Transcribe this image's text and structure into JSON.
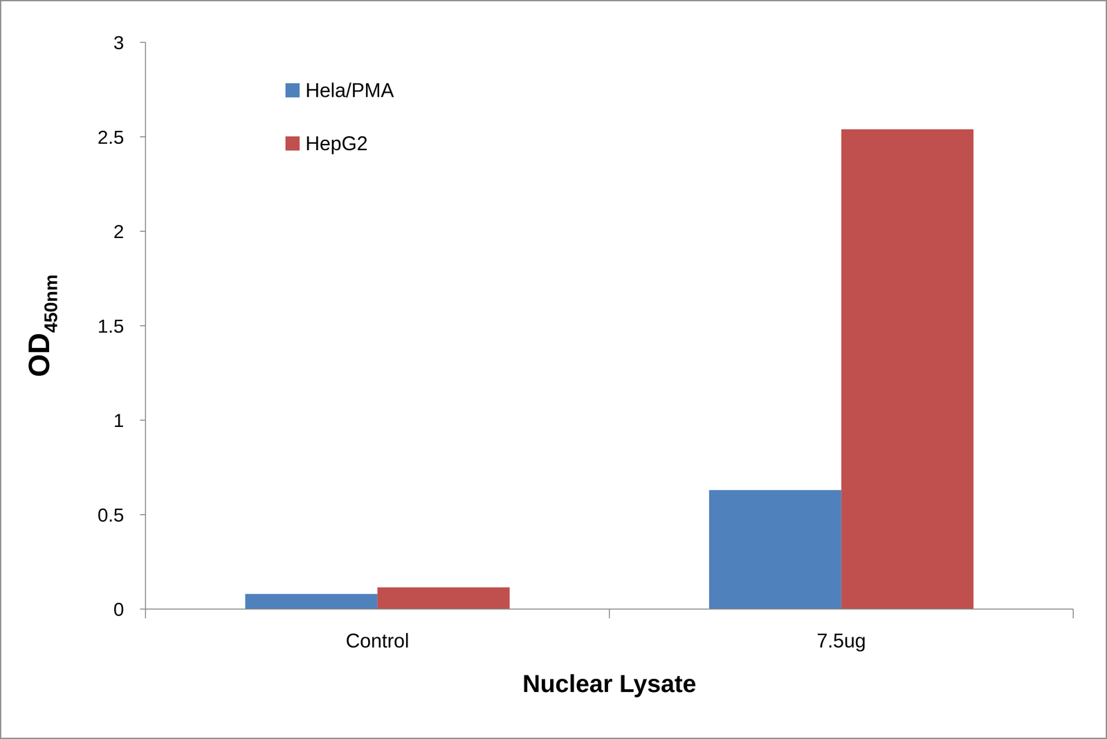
{
  "chart_data": {
    "type": "bar",
    "x_label": "Nuclear Lysate",
    "y_label": "OD",
    "y_label_subscript": "450nm",
    "categories": [
      "Control",
      "7.5ug"
    ],
    "series": [
      {
        "name": "Hela/PMA",
        "color": "#4f81bd",
        "values": [
          0.08,
          0.63
        ]
      },
      {
        "name": "HepG2",
        "color": "#c0504d",
        "values": [
          0.115,
          2.54
        ]
      }
    ],
    "ylim": [
      0,
      3
    ],
    "yticks": [
      0,
      0.5,
      1,
      1.5,
      2,
      2.5,
      3
    ],
    "grid": false,
    "legend": "top-left"
  }
}
